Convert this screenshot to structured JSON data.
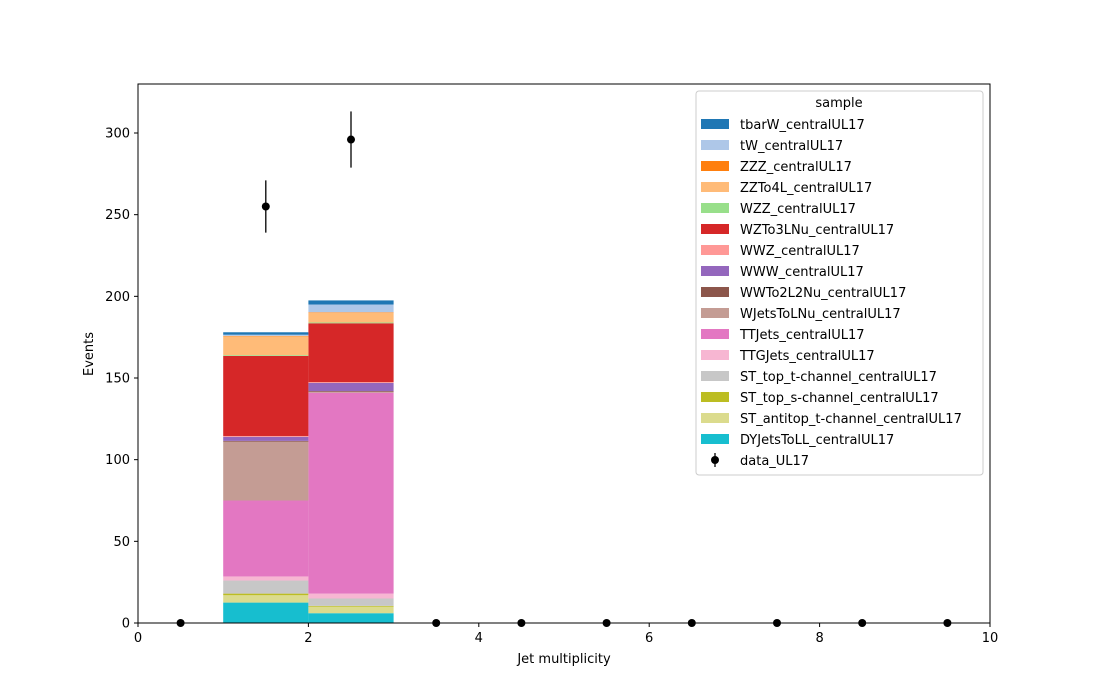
{
  "chart_data": {
    "type": "bar",
    "stacked": true,
    "xlabel": "Jet multiplicity",
    "ylabel": "Events",
    "xlim": [
      0,
      10
    ],
    "ylim": [
      0,
      330
    ],
    "xticks": [
      "0",
      "2",
      "4",
      "6",
      "8",
      "10"
    ],
    "yticks": [
      "0",
      "50",
      "100",
      "150",
      "200",
      "250",
      "300"
    ],
    "xtick_values": [
      0,
      2,
      4,
      6,
      8,
      10
    ],
    "ytick_values": [
      0,
      50,
      100,
      150,
      200,
      250,
      300
    ],
    "bin_edges": [
      0,
      1,
      2,
      3,
      4,
      5,
      6,
      7,
      8,
      9,
      10
    ],
    "legend_title": "sample",
    "legend_position": "top-right",
    "series": [
      {
        "name": "DYJetsToLL_centralUL17",
        "color": "#17becf",
        "values": [
          0,
          12.5,
          6.0,
          0,
          0,
          0,
          0,
          0,
          0,
          0
        ]
      },
      {
        "name": "ST_antitop_t-channel_centralUL17",
        "color": "#dbdb8d",
        "values": [
          0,
          4.5,
          4.0,
          0,
          0,
          0,
          0,
          0,
          0,
          0
        ]
      },
      {
        "name": "ST_top_s-channel_centralUL17",
        "color": "#bcbd22",
        "values": [
          0,
          1.0,
          0.5,
          0,
          0,
          0,
          0,
          0,
          0,
          0
        ]
      },
      {
        "name": "ST_top_t-channel_centralUL17",
        "color": "#c7c7c7",
        "values": [
          0,
          8.0,
          4.5,
          0,
          0,
          0,
          0,
          0,
          0,
          0
        ]
      },
      {
        "name": "TTGJets_centralUL17",
        "color": "#f7b6d2",
        "values": [
          0,
          2.5,
          3.0,
          0,
          0,
          0,
          0,
          0,
          0,
          0
        ]
      },
      {
        "name": "TTJets_centralUL17",
        "color": "#e377c2",
        "values": [
          0,
          46.5,
          123.0,
          0,
          0,
          0,
          0,
          0,
          0,
          0
        ]
      },
      {
        "name": "WJetsToLNu_centralUL17",
        "color": "#c49c94",
        "values": [
          0,
          36.0,
          0.5,
          0,
          0,
          0,
          0,
          0,
          0,
          0
        ]
      },
      {
        "name": "WWTo2L2Nu_centralUL17",
        "color": "#8c564b",
        "values": [
          0,
          0.5,
          0.5,
          0,
          0,
          0,
          0,
          0,
          0,
          0
        ]
      },
      {
        "name": "WWW_centralUL17",
        "color": "#9467bd",
        "values": [
          0,
          2.5,
          5.0,
          0,
          0,
          0,
          0,
          0,
          0,
          0
        ]
      },
      {
        "name": "WWZ_centralUL17",
        "color": "#ff9896",
        "values": [
          0,
          0.5,
          0.5,
          0,
          0,
          0,
          0,
          0,
          0,
          0
        ]
      },
      {
        "name": "WZTo3LNu_centralUL17",
        "color": "#d62728",
        "values": [
          0,
          49.0,
          36.0,
          0,
          0,
          0,
          0,
          0,
          0,
          0
        ]
      },
      {
        "name": "WZZ_centralUL17",
        "color": "#98df8a",
        "values": [
          0,
          0.5,
          0.5,
          0,
          0,
          0,
          0,
          0,
          0,
          0
        ]
      },
      {
        "name": "ZZTo4L_centralUL17",
        "color": "#ffbb78",
        "values": [
          0,
          11.5,
          6.0,
          0,
          0,
          0,
          0,
          0,
          0,
          0
        ]
      },
      {
        "name": "ZZZ_centralUL17",
        "color": "#ff7f0e",
        "values": [
          0,
          0.3,
          0.3,
          0,
          0,
          0,
          0,
          0,
          0,
          0
        ]
      },
      {
        "name": "tW_centralUL17",
        "color": "#aec7e8",
        "values": [
          0,
          0.7,
          4.7,
          0,
          0,
          0,
          0,
          0,
          0,
          0
        ]
      },
      {
        "name": "tbarW_centralUL17",
        "color": "#1f77b4",
        "values": [
          0,
          1.5,
          2.5,
          0,
          0,
          0,
          0,
          0,
          0,
          0
        ]
      }
    ],
    "data_points": {
      "name": "data_UL17",
      "color": "#000000",
      "x": [
        0.5,
        1.5,
        2.5,
        3.5,
        4.5,
        5.5,
        6.5,
        7.5,
        8.5,
        9.5
      ],
      "y": [
        0,
        255,
        296,
        0,
        0,
        0,
        0,
        0,
        0,
        0
      ],
      "yerr": [
        0,
        16,
        17.2,
        0,
        0,
        0,
        0,
        0,
        0,
        0
      ]
    }
  }
}
